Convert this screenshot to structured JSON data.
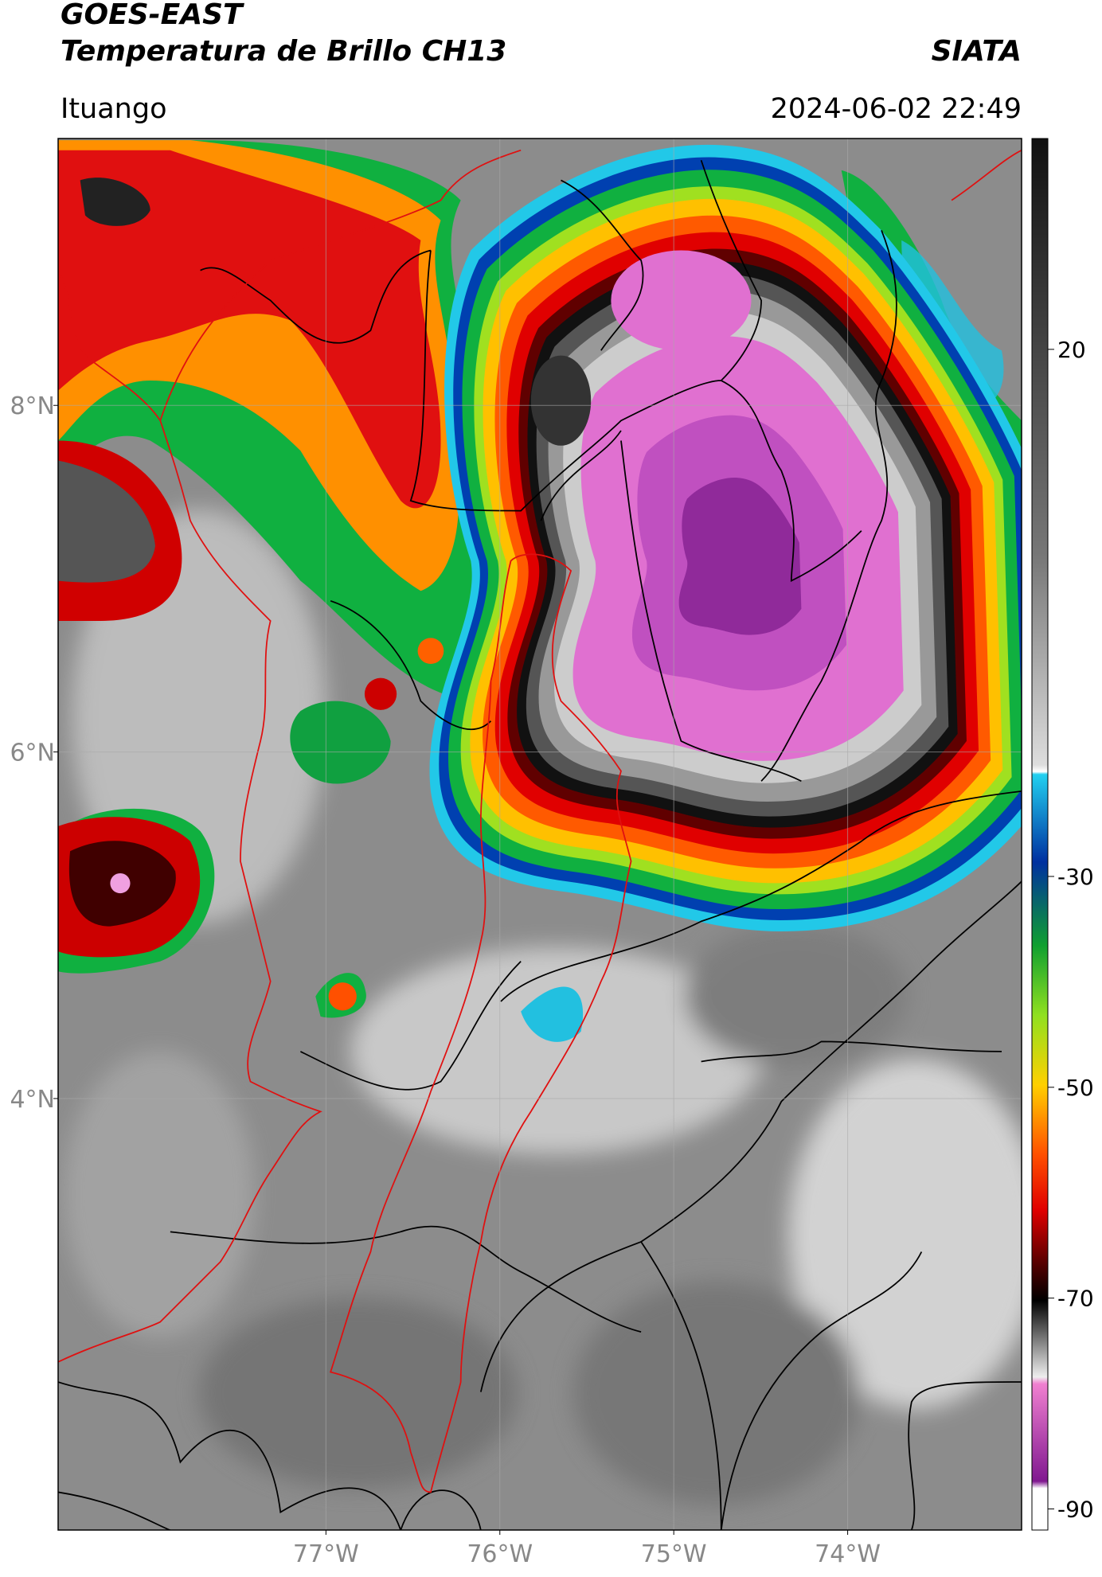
{
  "header": {
    "title": "GOES-EAST",
    "subtitle": "Temperatura de Brillo CH13",
    "source": "SIATA",
    "location": "Ituango",
    "datetime": "2024-06-02 22:49"
  },
  "chart_data": {
    "type": "map",
    "xlim": [
      -78.54,
      -73.0
    ],
    "ylim": [
      1.51,
      9.54
    ],
    "xticks": [
      {
        "value": -77,
        "label": "77°W"
      },
      {
        "value": -76,
        "label": "76°W"
      },
      {
        "value": -75,
        "label": "75°W"
      },
      {
        "value": -74,
        "label": "74°W"
      }
    ],
    "yticks": [
      {
        "value": 4,
        "label": "4°N"
      },
      {
        "value": 6,
        "label": "6°N"
      },
      {
        "value": 8,
        "label": "8°N"
      }
    ],
    "grid": true,
    "colorbar": {
      "lim": [
        -92,
        40
      ],
      "ticks": [
        -90,
        -70,
        -50,
        -30,
        20
      ]
    }
  }
}
